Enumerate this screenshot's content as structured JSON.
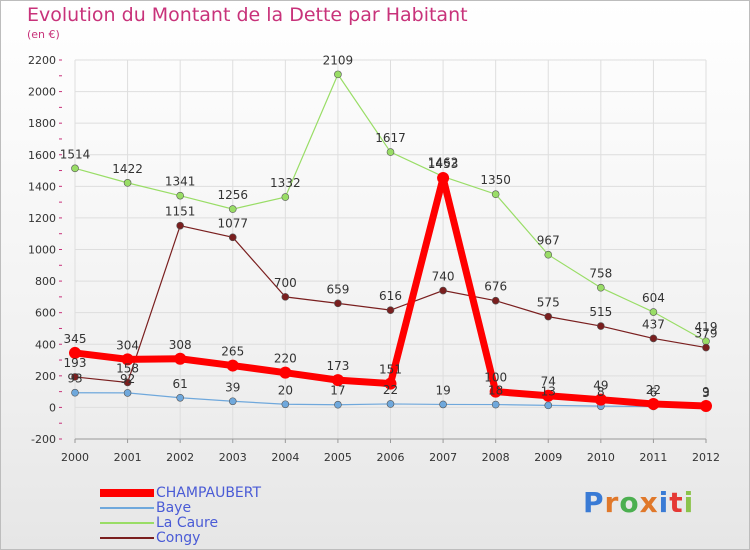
{
  "header": {
    "title": "Evolution du Montant de la Dette par Habitant",
    "unit": "(en €)"
  },
  "logo": {
    "text": "Proxiti"
  },
  "chart_data": {
    "type": "line",
    "title": "Evolution du Montant de la Dette par Habitant",
    "ylabel": "(en €)",
    "ylim": [
      -200,
      2200
    ],
    "yticks": [
      -200,
      0,
      200,
      400,
      600,
      800,
      1000,
      1200,
      1400,
      1600,
      1800,
      2000,
      2200
    ],
    "x": [
      "2000",
      "2001",
      "2002",
      "2003",
      "2004",
      "2005",
      "2006",
      "2007",
      "2008",
      "2009",
      "2010",
      "2011",
      "2012"
    ],
    "grid": true,
    "legend_position": "bottom-left",
    "series": [
      {
        "name": "CHAMPAUBERT",
        "color": "#ff0000",
        "values": [
          345,
          304,
          308,
          265,
          220,
          173,
          151,
          1453,
          100,
          74,
          49,
          22,
          9
        ]
      },
      {
        "name": "Baye",
        "color": "#6fa8dc",
        "values": [
          93,
          92,
          61,
          39,
          20,
          17,
          22,
          19,
          18,
          13,
          8,
          6,
          3
        ]
      },
      {
        "name": "La Caure",
        "color": "#99dd66",
        "values": [
          1514,
          1422,
          1341,
          1256,
          1332,
          2109,
          1617,
          1462,
          1350,
          967,
          758,
          604,
          419
        ]
      },
      {
        "name": "Congy",
        "color": "#7a1f1f",
        "values": [
          193,
          158,
          1151,
          1077,
          700,
          659,
          616,
          740,
          676,
          575,
          515,
          437,
          379
        ]
      }
    ]
  }
}
